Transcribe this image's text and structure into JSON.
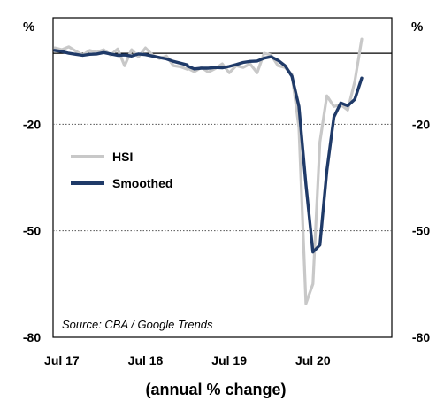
{
  "chart_data": {
    "type": "line",
    "unit_left": "%",
    "unit_right": "%",
    "xlabel": "(annual % change)",
    "source": "Source: CBA / Google Trends",
    "ylim": [
      -80,
      10
    ],
    "y_ticks": [
      -80,
      -50,
      -20
    ],
    "y_tick_labels": [
      "-80",
      "-50",
      "-20"
    ],
    "zero_line": 0,
    "gridlines_at": [
      -50,
      -20
    ],
    "x_ticks": [
      {
        "label": "Jul 17",
        "month": "2017-07"
      },
      {
        "label": "Jul 18",
        "month": "2018-07"
      },
      {
        "label": "Jul 19",
        "month": "2019-07"
      },
      {
        "label": "Jul 20",
        "month": "2020-07"
      }
    ],
    "legend": {
      "placement": "middle-left"
    },
    "colors": {
      "hsi": "#c8c8c8",
      "smoothed": "#1f3a68",
      "axis": "#000000",
      "grid": "#555555"
    },
    "series": [
      {
        "name": "HSI",
        "points": [
          [
            "2017-06",
            1.5
          ],
          [
            "2017-07",
            1.0
          ],
          [
            "2017-08",
            1.8
          ],
          [
            "2017-09",
            0.6
          ],
          [
            "2017-10",
            -0.5
          ],
          [
            "2017-11",
            0.8
          ],
          [
            "2017-12",
            0.3
          ],
          [
            "2018-01",
            1.0
          ],
          [
            "2018-02",
            -0.5
          ],
          [
            "2018-03",
            1.2
          ],
          [
            "2018-04",
            -3.5
          ],
          [
            "2018-05",
            1.0
          ],
          [
            "2018-06",
            -1.0
          ],
          [
            "2018-07",
            1.5
          ],
          [
            "2018-08",
            -0.5
          ],
          [
            "2018-09",
            -1.5
          ],
          [
            "2018-10",
            -0.8
          ],
          [
            "2018-11",
            -3.5
          ],
          [
            "2018-12",
            -3.8
          ],
          [
            "2018-13",
            -4.5
          ],
          [
            "2019-01",
            -4.2
          ],
          [
            "2019-02",
            -5.2
          ],
          [
            "2019-03",
            -4.0
          ],
          [
            "2019-04",
            -5.3
          ],
          [
            "2019-05",
            -4.3
          ],
          [
            "2019-06",
            -3.0
          ],
          [
            "2019-07",
            -5.5
          ],
          [
            "2019-08",
            -3.5
          ],
          [
            "2019-09",
            -4.0
          ],
          [
            "2019-10",
            -3.0
          ],
          [
            "2019-11",
            -5.5
          ],
          [
            "2019-12",
            0.0
          ],
          [
            "2020-01",
            -0.5
          ],
          [
            "2020-02",
            -3.5
          ],
          [
            "2020-03",
            -4.0
          ],
          [
            "2020-04",
            -6.0
          ],
          [
            "2020-05",
            -21.0
          ],
          [
            "2020-06",
            -70.5
          ],
          [
            "2020-07",
            -65.0
          ],
          [
            "2020-08",
            -25.0
          ],
          [
            "2020-09",
            -12.0
          ],
          [
            "2020-10",
            -15.0
          ],
          [
            "2020-11",
            -14.5
          ],
          [
            "2020-12",
            -16.0
          ],
          [
            "2021-01",
            -8.0
          ],
          [
            "2021-02",
            4.0
          ]
        ]
      },
      {
        "name": "Smoothed",
        "points": [
          [
            "2017-06",
            0.8
          ],
          [
            "2017-07",
            0.5
          ],
          [
            "2017-08",
            0.0
          ],
          [
            "2017-09",
            -0.3
          ],
          [
            "2017-10",
            -0.6
          ],
          [
            "2017-11",
            -0.3
          ],
          [
            "2017-12",
            -0.2
          ],
          [
            "2018-01",
            0.2
          ],
          [
            "2018-02",
            -0.2
          ],
          [
            "2018-03",
            -0.6
          ],
          [
            "2018-04",
            -0.5
          ],
          [
            "2018-05",
            -0.8
          ],
          [
            "2018-06",
            -0.2
          ],
          [
            "2018-07",
            -0.4
          ],
          [
            "2018-08",
            -0.8
          ],
          [
            "2018-09",
            -1.2
          ],
          [
            "2018-10",
            -1.6
          ],
          [
            "2018-11",
            -2.3
          ],
          [
            "2018-12",
            -2.8
          ],
          [
            "2018-13",
            -3.3
          ],
          [
            "2019-01",
            -3.6
          ],
          [
            "2019-02",
            -4.4
          ],
          [
            "2019-03",
            -4.2
          ],
          [
            "2019-04",
            -4.2
          ],
          [
            "2019-05",
            -4.0
          ],
          [
            "2019-06",
            -4.1
          ],
          [
            "2019-07",
            -3.7
          ],
          [
            "2019-08",
            -3.2
          ],
          [
            "2019-09",
            -2.6
          ],
          [
            "2019-10",
            -2.3
          ],
          [
            "2019-11",
            -2.2
          ],
          [
            "2019-12",
            -1.4
          ],
          [
            "2020-01",
            -1.0
          ],
          [
            "2020-02",
            -2.0
          ],
          [
            "2020-03",
            -3.5
          ],
          [
            "2020-04",
            -6.5
          ],
          [
            "2020-05",
            -15.0
          ],
          [
            "2020-06",
            -37.0
          ],
          [
            "2020-07",
            -56.0
          ],
          [
            "2020-08",
            -54.0
          ],
          [
            "2020-09",
            -33.0
          ],
          [
            "2020-10",
            -18.0
          ],
          [
            "2020-11",
            -14.0
          ],
          [
            "2020-12",
            -14.8
          ],
          [
            "2021-01",
            -13.0
          ],
          [
            "2021-02",
            -7.0
          ]
        ]
      }
    ]
  }
}
